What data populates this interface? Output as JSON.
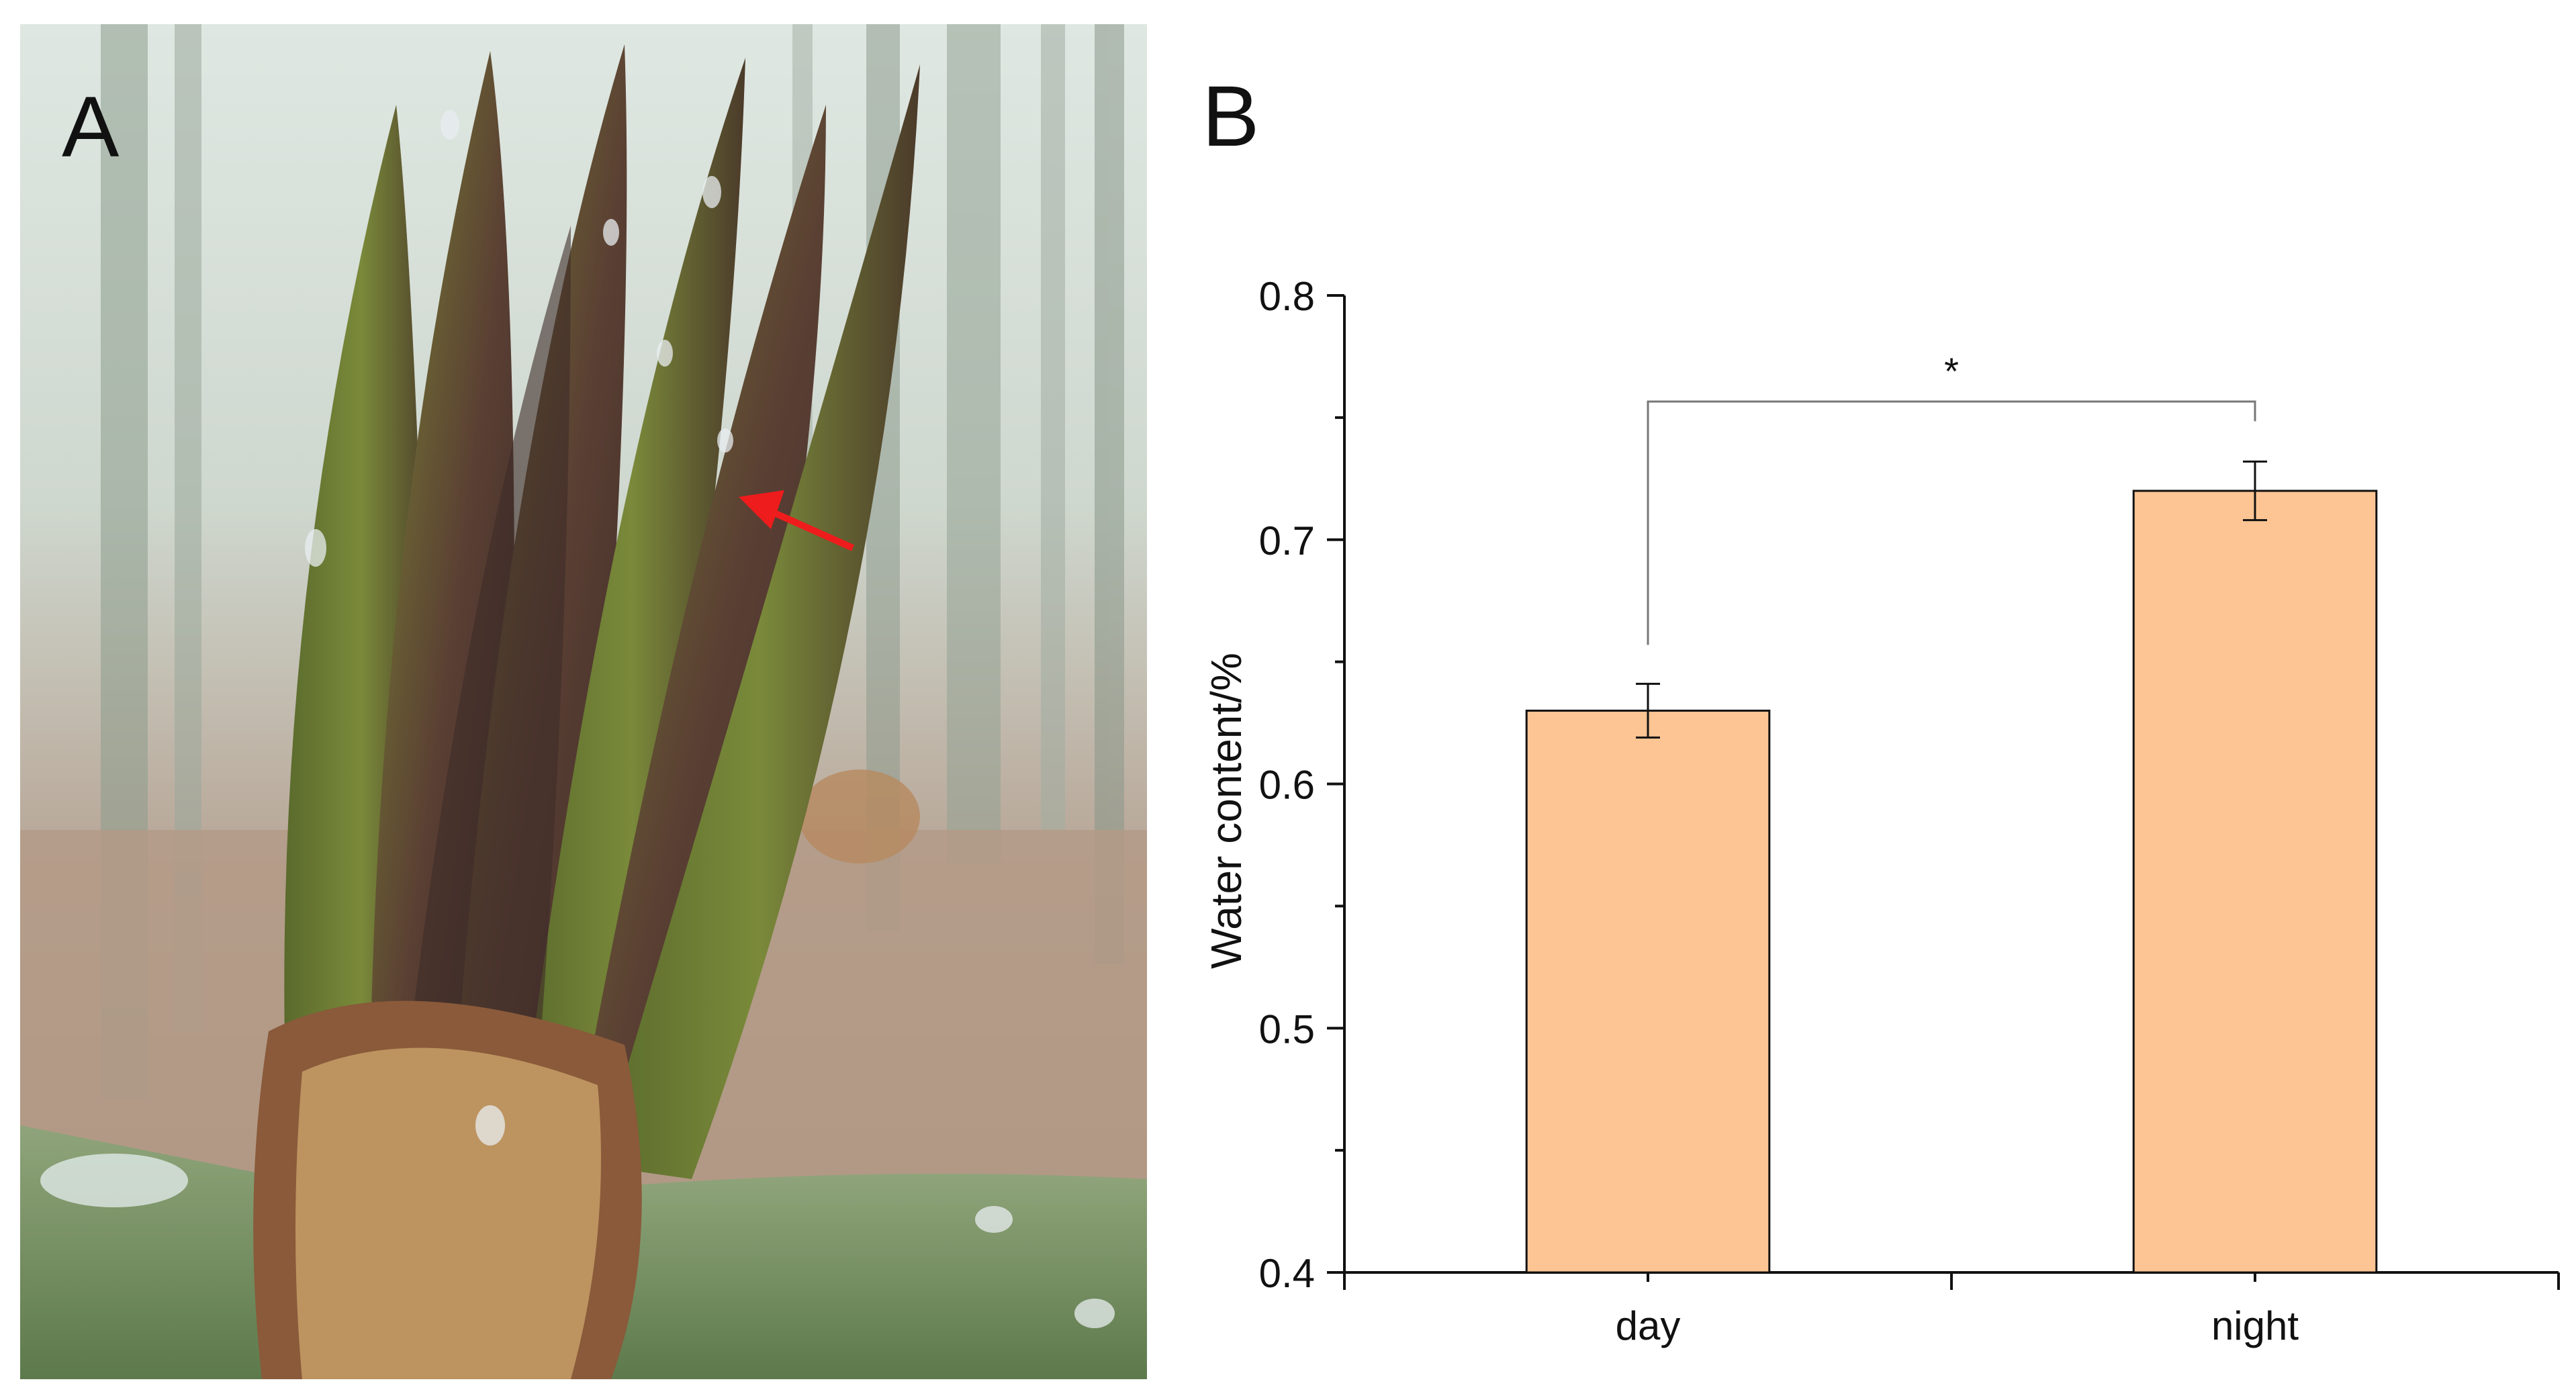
{
  "panels": {
    "a_label": "A",
    "b_label": "B"
  },
  "photo": {
    "subject": "bamboo-shoot-with-water-droplets",
    "arrow_color": "#ee1c1c"
  },
  "chart_data": {
    "type": "bar",
    "categories": [
      "day",
      "night"
    ],
    "values": [
      0.63,
      0.72
    ],
    "errors": [
      0.011,
      0.012
    ],
    "ylabel": "Water content/%",
    "xlabel": "",
    "ylim": [
      0.4,
      0.8
    ],
    "yticks": [
      "0.4",
      "0.5",
      "0.6",
      "0.7",
      "0.8"
    ],
    "significance": {
      "between": [
        "day",
        "night"
      ],
      "mark": "*"
    },
    "bar_color": "#fdc593",
    "grid": false,
    "legend": "none"
  }
}
